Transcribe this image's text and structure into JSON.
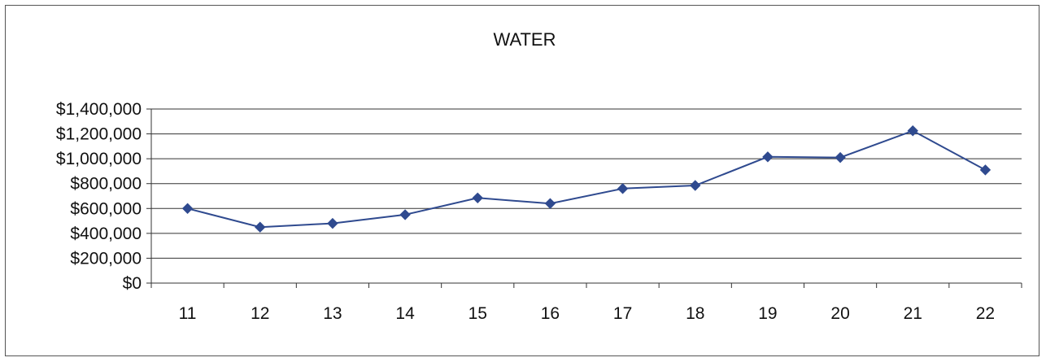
{
  "chart_data": {
    "type": "line",
    "title": "WATER",
    "xlabel": "",
    "ylabel": "",
    "categories": [
      "11",
      "12",
      "13",
      "14",
      "15",
      "16",
      "17",
      "18",
      "19",
      "20",
      "21",
      "22"
    ],
    "series": [
      {
        "values": [
          600000,
          450000,
          480000,
          550000,
          685000,
          640000,
          760000,
          785000,
          1015000,
          1010000,
          1225000,
          910000
        ],
        "color": "#2f4a8f",
        "marker": "diamond"
      }
    ],
    "ylim": [
      0,
      1400000
    ],
    "yticks": [
      0,
      200000,
      400000,
      600000,
      800000,
      1000000,
      1200000,
      1400000
    ],
    "ytick_labels": [
      "$0",
      "$200,000",
      "$400,000",
      "$600,000",
      "$800,000",
      "$1,000,000",
      "$1,200,000",
      "$1,400,000"
    ],
    "grid": true,
    "legend": "none"
  }
}
